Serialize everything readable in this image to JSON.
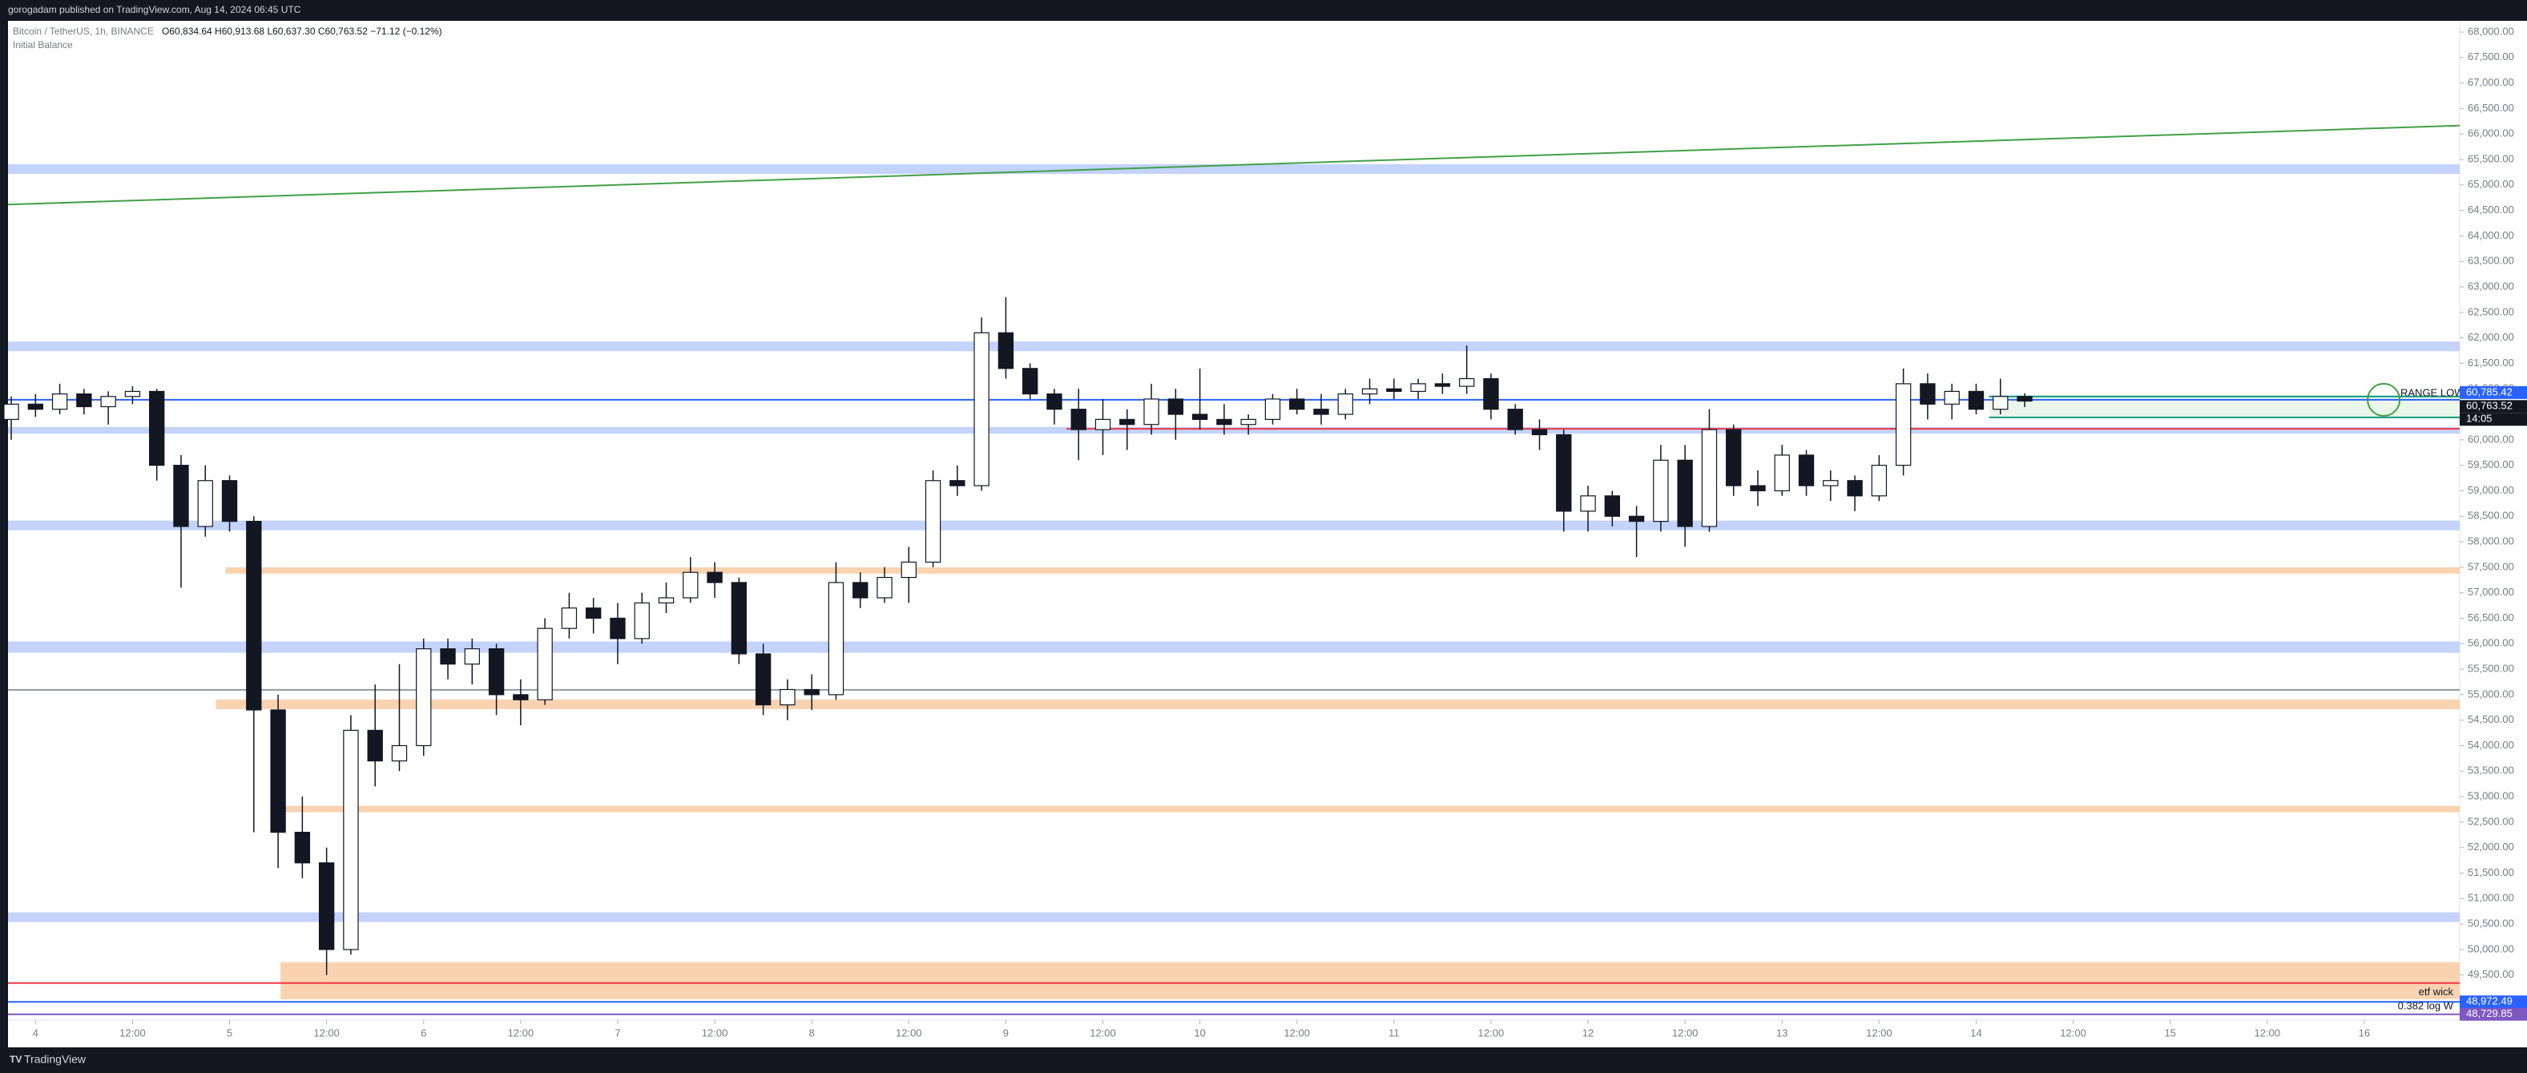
{
  "header": {
    "publisher": "gorogadam published on TradingView.com, Aug 14, 2024 06:45 UTC"
  },
  "footer": {
    "brand": "TradingView"
  },
  "chart_data": {
    "type": "candlestick",
    "title": "Bitcoin / TetherUS, 1h, BINANCE",
    "ohlc_label": "O60,834.64 H60,913.68 L60,637.30 C60,763.52 −71.12 (−0.12%)",
    "indicator": "Initial Balance",
    "up_color": "#ffffff",
    "down_color": "#131722",
    "border_color": "#131722",
    "x": [
      -3,
      0,
      3,
      6,
      9,
      12,
      15,
      18,
      21,
      24,
      27,
      30,
      33,
      36,
      39,
      42,
      45,
      48,
      51,
      54,
      57,
      60,
      63,
      66,
      69,
      72,
      75,
      78,
      81,
      84,
      87,
      90,
      93,
      96,
      99,
      102,
      105,
      108,
      111,
      114,
      117,
      120,
      123,
      126,
      129,
      132,
      135,
      138,
      141,
      144,
      147,
      150,
      153,
      156,
      159,
      162,
      165,
      168,
      171,
      174,
      177,
      180,
      183,
      186,
      189,
      192,
      195,
      198,
      201,
      204,
      207,
      210,
      213,
      216,
      219,
      222,
      225,
      228,
      231,
      234,
      237,
      240,
      243,
      246
    ],
    "open": [
      60400,
      60700,
      60600,
      60900,
      60650,
      60850,
      60950,
      59500,
      58300,
      59200,
      58400,
      54700,
      52300,
      51700,
      50000,
      54300,
      53700,
      54000,
      55900,
      55600,
      55900,
      55000,
      54900,
      56300,
      56700,
      56500,
      56100,
      56800,
      56900,
      57400,
      57200,
      55800,
      54800,
      55100,
      55000,
      57200,
      56900,
      57300,
      57600,
      59200,
      59100,
      62100,
      61400,
      60900,
      60600,
      60200,
      60400,
      60300,
      60800,
      60500,
      60400,
      60300,
      60400,
      60800,
      60600,
      60500,
      60900,
      61000,
      60950,
      61100,
      61050,
      61200,
      60600,
      60200,
      60100,
      58600,
      58900,
      58500,
      58400,
      59600,
      58300,
      60200,
      59100,
      59000,
      59700,
      59100,
      59200,
      58900,
      59500,
      61100,
      60700,
      60950,
      60600,
      60850
    ],
    "high": [
      60850,
      60900,
      61100,
      61000,
      60950,
      61050,
      61000,
      59700,
      59500,
      59300,
      58500,
      55000,
      53000,
      52000,
      54600,
      55200,
      55600,
      56100,
      56100,
      56100,
      56000,
      55300,
      56500,
      57000,
      56900,
      56800,
      57000,
      57200,
      57700,
      57600,
      57300,
      56000,
      55300,
      55400,
      57600,
      57400,
      57500,
      57900,
      59400,
      59500,
      62400,
      62800,
      61500,
      61000,
      61000,
      60800,
      60600,
      61100,
      61000,
      61400,
      60700,
      60500,
      60900,
      61000,
      60900,
      61000,
      61200,
      61200,
      61200,
      61300,
      61850,
      61300,
      60700,
      60400,
      60200,
      59100,
      59000,
      58700,
      59900,
      59900,
      60600,
      60300,
      59400,
      59900,
      59800,
      59400,
      59300,
      59700,
      61400,
      61300,
      61100,
      61100,
      61200,
      60915
    ],
    "low": [
      60000,
      60450,
      60500,
      60500,
      60300,
      60700,
      59200,
      57100,
      58100,
      58200,
      52300,
      51600,
      51400,
      49500,
      49900,
      53200,
      53500,
      53800,
      55300,
      55200,
      54600,
      54400,
      54800,
      56100,
      56200,
      55600,
      56000,
      56600,
      56800,
      56900,
      55600,
      54600,
      54500,
      54700,
      54900,
      56700,
      56800,
      56800,
      57500,
      58900,
      59000,
      61200,
      60800,
      60300,
      59600,
      59700,
      59800,
      60100,
      60000,
      60200,
      60100,
      60100,
      60300,
      60500,
      60300,
      60400,
      60700,
      60800,
      60800,
      60900,
      60900,
      60400,
      60100,
      59800,
      58200,
      58200,
      58300,
      57700,
      58200,
      57900,
      58200,
      58900,
      58700,
      58900,
      58900,
      58800,
      58600,
      58800,
      59300,
      60400,
      60400,
      60500,
      60500,
      60640
    ],
    "close": [
      60700,
      60600,
      60900,
      60650,
      60850,
      60950,
      59500,
      58300,
      59200,
      58400,
      54700,
      52300,
      51700,
      50000,
      54300,
      53700,
      54000,
      55900,
      55600,
      55900,
      55000,
      54900,
      56300,
      56700,
      56500,
      56100,
      56800,
      56900,
      57400,
      57200,
      55800,
      54800,
      55100,
      55000,
      57200,
      56900,
      57300,
      57600,
      59200,
      59100,
      62100,
      61400,
      60900,
      60600,
      60200,
      60400,
      60300,
      60800,
      60500,
      60400,
      60300,
      60400,
      60800,
      60600,
      60500,
      60900,
      61000,
      60950,
      61100,
      61050,
      61200,
      60600,
      60200,
      60100,
      58600,
      58900,
      58500,
      58400,
      59600,
      58300,
      60200,
      59100,
      59000,
      59700,
      59100,
      59200,
      58900,
      59500,
      61100,
      60700,
      60950,
      60600,
      60850,
      60760
    ],
    "xlim": [
      -3.4,
      299.8
    ],
    "xticks": [
      {
        "value": 0,
        "label": "4"
      },
      {
        "value": 12,
        "label": "12:00"
      },
      {
        "value": 24,
        "label": "5"
      },
      {
        "value": 36,
        "label": "12:00"
      },
      {
        "value": 48,
        "label": "6"
      },
      {
        "value": 60,
        "label": "12:00"
      },
      {
        "value": 72,
        "label": "7"
      },
      {
        "value": 84,
        "label": "12:00"
      },
      {
        "value": 96,
        "label": "8"
      },
      {
        "value": 108,
        "label": "12:00"
      },
      {
        "value": 120,
        "label": "9"
      },
      {
        "value": 132,
        "label": "12:00"
      },
      {
        "value": 144,
        "label": "10"
      },
      {
        "value": 156,
        "label": "12:00"
      },
      {
        "value": 168,
        "label": "11"
      },
      {
        "value": 180,
        "label": "12:00"
      },
      {
        "value": 192,
        "label": "12"
      },
      {
        "value": 204,
        "label": "12:00"
      },
      {
        "value": 216,
        "label": "13"
      },
      {
        "value": 228,
        "label": "12:00"
      },
      {
        "value": 240,
        "label": "14"
      },
      {
        "value": 252,
        "label": "12:00"
      },
      {
        "value": 264,
        "label": "15"
      },
      {
        "value": 276,
        "label": "12:00"
      },
      {
        "value": 288,
        "label": "16"
      }
    ],
    "ylim": [
      48615,
      68220
    ],
    "yticks": [
      {
        "value": 49500,
        "label": "49,500.00"
      },
      {
        "value": 50000,
        "label": "50,000.00"
      },
      {
        "value": 50500,
        "label": "50,500.00"
      },
      {
        "value": 51000,
        "label": "51,000.00"
      },
      {
        "value": 51500,
        "label": "51,500.00"
      },
      {
        "value": 52000,
        "label": "52,000.00"
      },
      {
        "value": 52500,
        "label": "52,500.00"
      },
      {
        "value": 53000,
        "label": "53,000.00"
      },
      {
        "value": 53500,
        "label": "53,500.00"
      },
      {
        "value": 54000,
        "label": "54,000.00"
      },
      {
        "value": 54500,
        "label": "54,500.00"
      },
      {
        "value": 55000,
        "label": "55,000.00"
      },
      {
        "value": 55500,
        "label": "55,500.00"
      },
      {
        "value": 56000,
        "label": "56,000.00"
      },
      {
        "value": 56500,
        "label": "56,500.00"
      },
      {
        "value": 57000,
        "label": "57,000.00"
      },
      {
        "value": 57500,
        "label": "57,500.00"
      },
      {
        "value": 58000,
        "label": "58,000.00"
      },
      {
        "value": 58500,
        "label": "58,500.00"
      },
      {
        "value": 59000,
        "label": "59,000.00"
      },
      {
        "value": 59500,
        "label": "59,500.00"
      },
      {
        "value": 60000,
        "label": "60,000.00"
      },
      {
        "value": 60500,
        "label": "60,500.00"
      },
      {
        "value": 61000,
        "label": "61,000.00"
      },
      {
        "value": 61500,
        "label": "61,500.00"
      },
      {
        "value": 62000,
        "label": "62,000.00"
      },
      {
        "value": 62500,
        "label": "62,500.00"
      },
      {
        "value": 63000,
        "label": "63,000.00"
      },
      {
        "value": 63500,
        "label": "63,500.00"
      },
      {
        "value": 64000,
        "label": "64,000.00"
      },
      {
        "value": 64500,
        "label": "64,500.00"
      },
      {
        "value": 65000,
        "label": "65,000.00"
      },
      {
        "value": 65500,
        "label": "65,500.00"
      },
      {
        "value": 66000,
        "label": "66,000.00"
      },
      {
        "value": 66500,
        "label": "66,500.00"
      },
      {
        "value": 67000,
        "label": "67,000.00"
      },
      {
        "value": 67500,
        "label": "67,500.00"
      },
      {
        "value": 68000,
        "label": "68,000.00"
      }
    ],
    "grid": false,
    "zones": [
      {
        "top": 65407,
        "bottom": 65217,
        "start": -3.4,
        "color": "#c3d3fb"
      },
      {
        "top": 61928,
        "bottom": 61738,
        "start": -3.4,
        "color": "#c3d3fb"
      },
      {
        "top": 60250,
        "bottom": 60120,
        "start": -3.4,
        "color": "#c3d3fb"
      },
      {
        "top": 58415,
        "bottom": 58225,
        "start": -3.4,
        "color": "#c3d3fb"
      },
      {
        "top": 56043,
        "bottom": 55822,
        "start": -3.4,
        "color": "#c3d3fb"
      },
      {
        "top": 50730,
        "bottom": 50540,
        "start": -3.4,
        "color": "#c3d3fb"
      },
      {
        "top": 57499,
        "bottom": 57373,
        "start": 23.5,
        "color": "#f9d3b0"
      },
      {
        "top": 54906,
        "bottom": 54716,
        "start": 22.3,
        "color": "#f9d3b0"
      },
      {
        "top": 52819,
        "bottom": 52693,
        "start": 29.9,
        "color": "#f9d3b0"
      },
      {
        "top": 49753,
        "bottom": 49026,
        "start": 30.3,
        "color": "#f9d3b0"
      },
      {
        "top": 60850,
        "bottom": 60440,
        "start": 241.6,
        "color": "#eaf6ea"
      }
    ],
    "lines": [
      {
        "value": 60785,
        "start": -3.4,
        "color": "#2962ff"
      },
      {
        "value": 60216,
        "start": 127.5,
        "color": "#f23645"
      },
      {
        "value": 55095,
        "start": -3.4,
        "color": "#9598a1"
      },
      {
        "value": 49342,
        "start": -3.4,
        "color": "#f23645"
      },
      {
        "value": 48972,
        "start": -3.4,
        "color": "#2962ff"
      },
      {
        "value": 48729,
        "start": -3.4,
        "color": "#7e57c2"
      },
      {
        "value": 60850,
        "start": 241.6,
        "color": "#089981"
      },
      {
        "value": 60440,
        "start": 241.6,
        "color": "#089981"
      }
    ],
    "trendline": {
      "x": [
        -3.4,
        299.8
      ],
      "y": [
        64616,
        66165
      ],
      "color": "#43a047"
    },
    "marker": {
      "x": 290.4,
      "y": 60785,
      "color": "#43a047"
    },
    "annotations": [
      "RANGE LOW",
      "etf wick",
      "0.382 log W"
    ],
    "price_tags": [
      {
        "value": 60785.42,
        "label": "60,785.42",
        "color": "#2962ff"
      },
      {
        "value": 60763.52,
        "label": "60,763.52",
        "color": "#131722"
      },
      {
        "value": 48972.49,
        "label": "48,972.49",
        "color": "#2962ff"
      },
      {
        "value": 48729.85,
        "label": "48,729.85",
        "color": "#7e57c2"
      }
    ],
    "countdown": "14:05"
  }
}
